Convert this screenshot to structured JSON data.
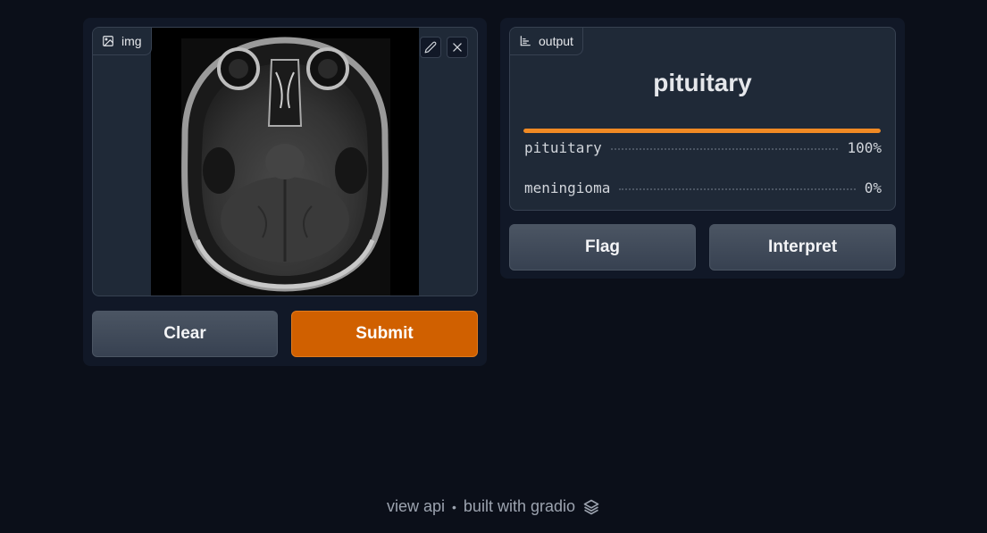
{
  "input": {
    "label": "img",
    "label_icon": "image-icon",
    "edit_icon": "pencil-icon",
    "close_icon": "close-icon",
    "image_alt": "axial brain MRI scan"
  },
  "output": {
    "label": "output",
    "label_icon": "bar-chart-icon",
    "title": "pituitary",
    "top_confidence": 1.0,
    "confidences": [
      {
        "label": "pituitary",
        "value": "100%"
      },
      {
        "label": "meningioma",
        "value": "0%"
      }
    ]
  },
  "buttons": {
    "clear": "Clear",
    "submit": "Submit",
    "flag": "Flag",
    "interpret": "Interpret"
  },
  "footer": {
    "view_api": "view api",
    "separator": "•",
    "built_with": "built with gradio",
    "logo_icon": "gradio-logo-icon"
  },
  "colors": {
    "background": "#0b0f19",
    "primary": "#d06000",
    "accent_bar": "#f08a24"
  }
}
